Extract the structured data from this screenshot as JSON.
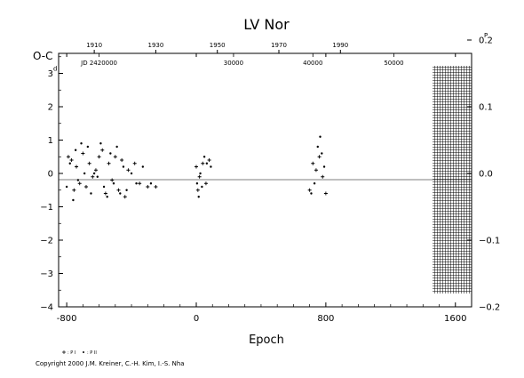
{
  "chart_data": {
    "type": "scatter",
    "title": "LV  Nor",
    "ylabel": "O-C",
    "xlabel": "Epoch",
    "xlim": [
      -850,
      1700
    ],
    "ylim": [
      -4,
      3.6
    ],
    "x_ticks": [
      "-800",
      "0",
      "800",
      "1600"
    ],
    "x_tick_values": [
      -800,
      0,
      800,
      1600
    ],
    "y_ticks_left": [
      "3",
      "2",
      "1",
      "0",
      "−1",
      "−2",
      "−3",
      "−4"
    ],
    "y_tick_values_left": [
      3,
      2,
      1,
      0,
      -1,
      -2,
      -3,
      -4
    ],
    "left_unit_superscript": "d",
    "y_ticks_right": [
      "0.2",
      "0.1",
      "0.0",
      "−0.1",
      "−0.2"
    ],
    "y_tick_values_right": [
      0.2,
      0.1,
      0.0,
      -0.1,
      -0.2
    ],
    "right_unit_superscript": "P",
    "right_axis_scale": 0.05,
    "top_year_ticks": [
      "1910",
      "1930",
      "1950",
      "1970",
      "1990"
    ],
    "top_year_tick_epochs": [
      -630,
      -250,
      130,
      510,
      890
    ],
    "jd_labels": [
      {
        "text": "JD 2420000",
        "epoch": -600
      },
      {
        "text": "30000",
        "epoch": 230
      },
      {
        "text": "40000",
        "epoch": 720
      },
      {
        "text": "50000",
        "epoch": 1220
      }
    ],
    "future_region_start": 1470,
    "grid": false,
    "zero_line": true,
    "legend": [
      {
        "label": "+ : P I",
        "marker": "+"
      },
      {
        "label": "· : P II",
        "marker": "dot"
      }
    ],
    "series": [
      {
        "name": "P I",
        "marker": "+",
        "points": [
          [
            -790,
            0.5
          ],
          [
            -770,
            0.4
          ],
          [
            -755,
            -0.5
          ],
          [
            -740,
            0.2
          ],
          [
            -720,
            -0.3
          ],
          [
            -700,
            0.6
          ],
          [
            -680,
            -0.4
          ],
          [
            -660,
            0.3
          ],
          [
            -640,
            -0.1
          ],
          [
            -620,
            0.1
          ],
          [
            -600,
            0.5
          ],
          [
            -580,
            0.7
          ],
          [
            -560,
            -0.6
          ],
          [
            -540,
            0.3
          ],
          [
            -520,
            -0.2
          ],
          [
            -500,
            0.5
          ],
          [
            -480,
            -0.5
          ],
          [
            -460,
            0.4
          ],
          [
            -440,
            -0.7
          ],
          [
            -420,
            0.1
          ],
          [
            -380,
            0.3
          ],
          [
            -350,
            -0.3
          ],
          [
            -300,
            -0.4
          ],
          [
            -250,
            -0.4
          ],
          [
            0,
            0.2
          ],
          [
            10,
            -0.5
          ],
          [
            20,
            -0.1
          ],
          [
            40,
            0.3
          ],
          [
            60,
            -0.3
          ],
          [
            80,
            0.4
          ],
          [
            700,
            -0.5
          ],
          [
            720,
            0.3
          ],
          [
            740,
            0.1
          ],
          [
            760,
            0.5
          ],
          [
            780,
            -0.1
          ],
          [
            800,
            -0.6
          ]
        ]
      },
      {
        "name": "P II",
        "marker": "dot",
        "points": [
          [
            -800,
            -0.4
          ],
          [
            -780,
            0.3
          ],
          [
            -760,
            -0.8
          ],
          [
            -745,
            0.7
          ],
          [
            -730,
            -0.2
          ],
          [
            -710,
            0.9
          ],
          [
            -690,
            0.0
          ],
          [
            -670,
            0.8
          ],
          [
            -650,
            -0.6
          ],
          [
            -630,
            0.0
          ],
          [
            -610,
            -0.1
          ],
          [
            -590,
            0.9
          ],
          [
            -570,
            -0.4
          ],
          [
            -550,
            -0.7
          ],
          [
            -530,
            0.6
          ],
          [
            -510,
            -0.3
          ],
          [
            -490,
            0.8
          ],
          [
            -470,
            -0.6
          ],
          [
            -450,
            0.2
          ],
          [
            -430,
            -0.5
          ],
          [
            -400,
            0.0
          ],
          [
            -370,
            -0.3
          ],
          [
            -330,
            0.2
          ],
          [
            -280,
            -0.3
          ],
          [
            5,
            -0.3
          ],
          [
            15,
            -0.7
          ],
          [
            25,
            0.0
          ],
          [
            35,
            -0.4
          ],
          [
            50,
            0.5
          ],
          [
            65,
            0.3
          ],
          [
            90,
            0.2
          ],
          [
            710,
            -0.6
          ],
          [
            730,
            -0.3
          ],
          [
            750,
            0.8
          ],
          [
            765,
            1.1
          ],
          [
            775,
            0.6
          ],
          [
            790,
            0.2
          ]
        ]
      }
    ]
  },
  "copyright": "Copyright 2000 J.M. Kreiner, C.-H. Kim, I.-S. Nha"
}
